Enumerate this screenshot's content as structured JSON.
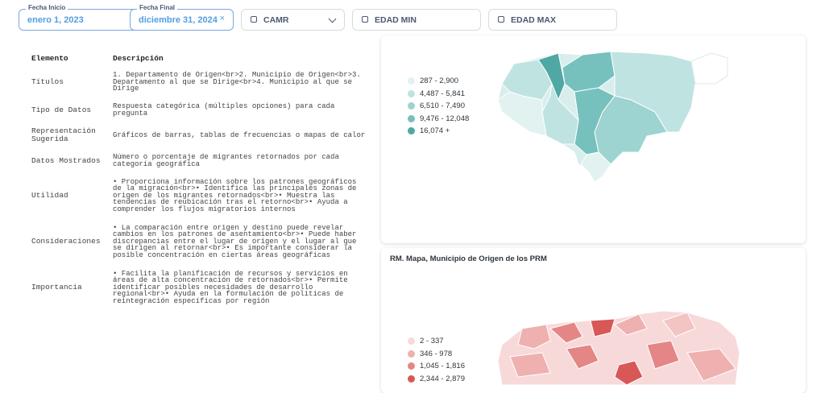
{
  "filters": [
    {
      "label": "Fecha Inicio",
      "value": "enero 1, 2023"
    },
    {
      "label": "Fecha Final",
      "value": "diciembre 31, 2024"
    },
    {
      "placeholder": "CAMR"
    },
    {
      "placeholder": "EDAD MIN"
    },
    {
      "placeholder": "EDAD MAX"
    }
  ],
  "table": {
    "headers": [
      "Elemento",
      "Descripción"
    ],
    "rows": [
      [
        "Títulos",
        "1. Departamento de Origen<br>2. Municipio de Origen<br>3. Departamento al que se Dirige<br>4. Municipio al que se Dirige"
      ],
      [
        "Tipo de Datos",
        "Respuesta categórica (múltiples opciones) para cada pregunta"
      ],
      [
        "Representación Sugerida",
        "Gráficos de barras, tablas de frecuencias o mapas de calor"
      ],
      [
        "Datos Mostrados",
        "Número o porcentaje de migrantes retornados por cada categoría geográfica"
      ],
      [
        "Utilidad",
        "• Proporciona información sobre los patrones geográficos de la migración<br>• Identifica las principales zonas de origen de los migrantes retornados<br>• Muestra las tendencias de reubicación tras el retorno<br>• Ayuda a comprender los flujos migratorios internos"
      ],
      [
        "Consideraciones",
        "• La comparación entre origen y destino puede revelar cambios en los patrones de asentamiento<br>• Puede haber discrepancias entre el lugar de origen y el lugar al que se dirigen al retornar<br>• Es importante considerar la posible concentración en ciertas áreas geográficas"
      ],
      [
        "Importancia",
        "• Facilita la planificación de recursos y servicios en áreas de alta concentración de retornados<br>• Permite identificar posibles necesidades de desarrollo regional<br>• Ayuda en la formulación de políticas de reintegración específicas por región"
      ]
    ]
  },
  "map_department": {
    "legend": [
      {
        "label": "287 - 2,900",
        "color": "#e2f2f1"
      },
      {
        "label": "4,487 - 5,841",
        "color": "#bfe3e1"
      },
      {
        "label": "6,510 - 7,490",
        "color": "#9dd3d0"
      },
      {
        "label": "9,476 - 12,048",
        "color": "#76c1bd"
      },
      {
        "label": "16,074 +",
        "color": "#4fa8a4"
      }
    ]
  },
  "map_municipality": {
    "title": "RM. Mapa, Municipio de Origen de los PRM",
    "legend": [
      {
        "label": "2 - 337",
        "color": "#f8d9d9"
      },
      {
        "label": "346 - 978",
        "color": "#efb0b0"
      },
      {
        "label": "1,045 - 1,816",
        "color": "#e58686"
      },
      {
        "label": "2,344 - 2,879",
        "color": "#d95757"
      }
    ]
  }
}
